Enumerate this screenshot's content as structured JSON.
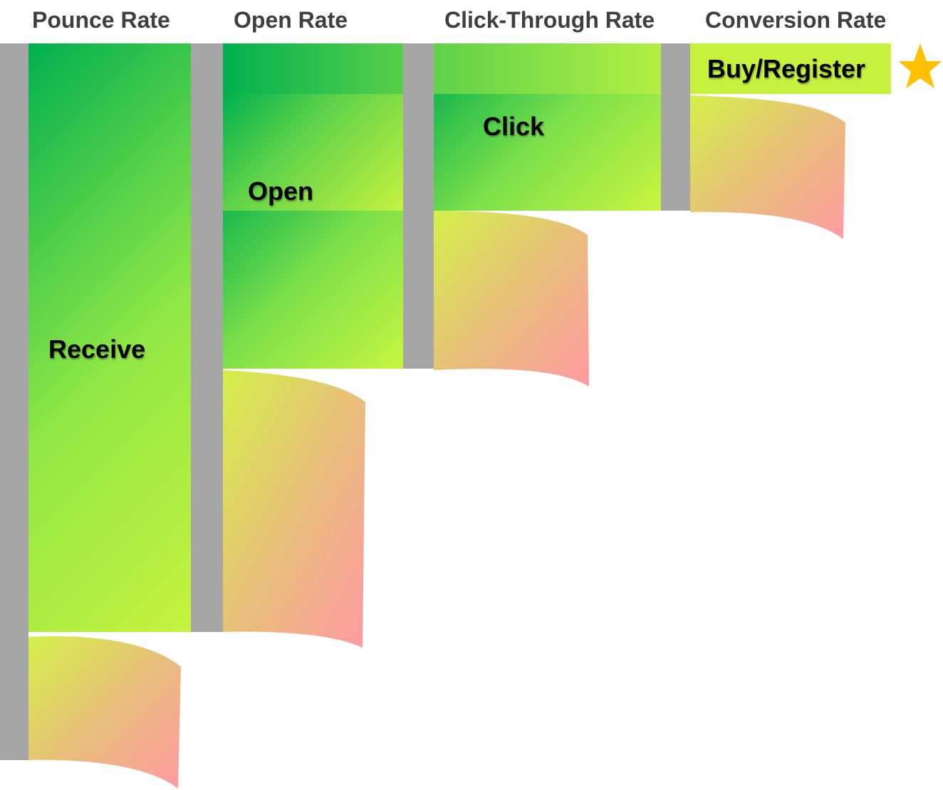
{
  "headers": {
    "pounce": "Pounce Rate",
    "open": "Open Rate",
    "click_through": "Click-Through Rate",
    "conversion": "Conversion Rate"
  },
  "stages": {
    "receive": "Receive",
    "open": "Open",
    "click": "Click",
    "buy": "Buy/Register"
  },
  "icons": {
    "goal": "star-icon"
  },
  "colors": {
    "divider": "#a6a6a6",
    "pass_start": "#00b050",
    "pass_end": "#c6f23f",
    "drop_start": "#d4f04a",
    "drop_end": "#ff9aa2",
    "star": "#ffc000",
    "header_text": "#3f3f3f"
  }
}
